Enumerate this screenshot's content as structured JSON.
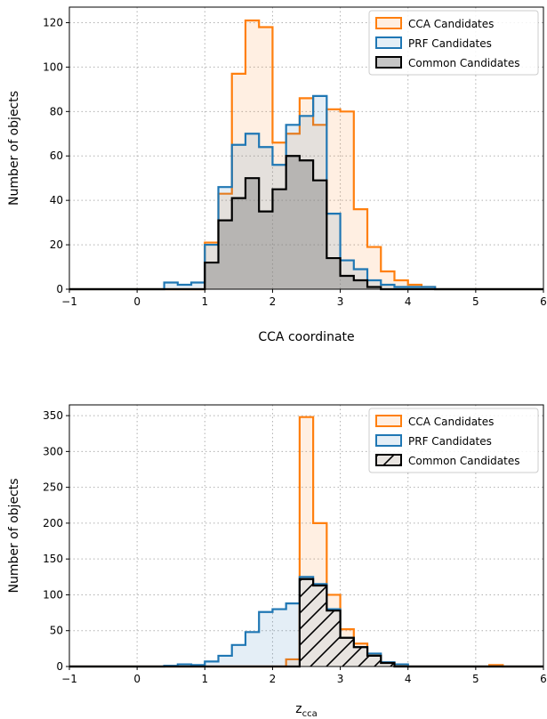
{
  "chart_data": [
    {
      "type": "histogram",
      "xlabel": "CCA coordinate",
      "ylabel": "Number of objects",
      "xlim": [
        -1,
        6
      ],
      "ylim": [
        0,
        127
      ],
      "xticks": [
        -1,
        0,
        1,
        2,
        3,
        4,
        5,
        6
      ],
      "yticks": [
        0,
        20,
        40,
        60,
        80,
        100,
        120
      ],
      "grid": true,
      "legend_position": "top-right",
      "bin_edges": [
        -1.0,
        -0.8,
        -0.6,
        -0.4,
        -0.2,
        0.0,
        0.2,
        0.4,
        0.6,
        0.8,
        1.0,
        1.2,
        1.4,
        1.6,
        1.8,
        2.0,
        2.2,
        2.4,
        2.6,
        2.8,
        3.0,
        3.2,
        3.4,
        3.6,
        3.8,
        4.0,
        4.2,
        4.4,
        4.6,
        4.8,
        5.0,
        5.2,
        5.4,
        5.6,
        5.8,
        6.0
      ],
      "series": [
        {
          "name": "CCA Candidates",
          "color": "#ff7f0e",
          "fill": "#ff7f0e",
          "fill_opacity": 0.12,
          "hatch": false,
          "values": [
            0,
            0,
            0,
            0,
            0,
            0,
            0,
            0,
            0,
            0,
            21,
            43,
            97,
            121,
            118,
            66,
            70,
            86,
            74,
            81,
            80,
            36,
            19,
            8,
            4,
            2,
            1,
            0,
            0,
            0,
            0,
            0,
            0,
            0,
            0
          ]
        },
        {
          "name": "PRF Candidates",
          "color": "#1f77b4",
          "fill": "#1f77b4",
          "fill_opacity": 0.12,
          "hatch": false,
          "values": [
            0,
            0,
            0,
            0,
            0,
            0,
            0,
            3,
            2,
            3,
            20,
            46,
            65,
            70,
            64,
            56,
            74,
            78,
            87,
            34,
            13,
            9,
            4,
            2,
            1,
            1,
            1,
            0,
            0,
            0,
            0,
            0,
            0,
            0,
            0
          ]
        },
        {
          "name": "Common Candidates",
          "color": "#000000",
          "fill": "#808080",
          "fill_opacity": 0.45,
          "hatch": false,
          "values": [
            0,
            0,
            0,
            0,
            0,
            0,
            0,
            0,
            0,
            0,
            12,
            31,
            41,
            50,
            35,
            45,
            60,
            58,
            49,
            14,
            6,
            4,
            1,
            0,
            0,
            0,
            0,
            0,
            0,
            0,
            0,
            0,
            0,
            0,
            0
          ]
        }
      ]
    },
    {
      "type": "histogram",
      "xlabel": "z",
      "xlabel_sub": "cca",
      "ylabel": "Number of objects",
      "xlim": [
        -1,
        6
      ],
      "ylim": [
        0,
        365
      ],
      "xticks": [
        -1,
        0,
        1,
        2,
        3,
        4,
        5,
        6
      ],
      "yticks": [
        0,
        50,
        100,
        150,
        200,
        250,
        300,
        350
      ],
      "grid": true,
      "legend_position": "top-right",
      "bin_edges": [
        -1.0,
        -0.8,
        -0.6,
        -0.4,
        -0.2,
        0.0,
        0.2,
        0.4,
        0.6,
        0.8,
        1.0,
        1.2,
        1.4,
        1.6,
        1.8,
        2.0,
        2.2,
        2.4,
        2.6,
        2.8,
        3.0,
        3.2,
        3.4,
        3.6,
        3.8,
        4.0,
        4.2,
        4.4,
        4.6,
        4.8,
        5.0,
        5.2,
        5.4,
        5.6,
        5.8,
        6.0
      ],
      "series": [
        {
          "name": "CCA Candidates",
          "color": "#ff7f0e",
          "fill": "#ff7f0e",
          "fill_opacity": 0.12,
          "hatch": false,
          "values": [
            0,
            0,
            0,
            0,
            0,
            0,
            0,
            0,
            0,
            0,
            0,
            0,
            0,
            0,
            0,
            0,
            10,
            348,
            200,
            100,
            52,
            32,
            16,
            5,
            2,
            0,
            0,
            0,
            0,
            0,
            0,
            2,
            0,
            0,
            0
          ]
        },
        {
          "name": "PRF Candidates",
          "color": "#1f77b4",
          "fill": "#1f77b4",
          "fill_opacity": 0.12,
          "hatch": false,
          "values": [
            0,
            0,
            0,
            0,
            0,
            0,
            0,
            1,
            3,
            2,
            7,
            15,
            30,
            48,
            76,
            80,
            88,
            125,
            115,
            80,
            40,
            27,
            18,
            6,
            3,
            0,
            0,
            0,
            0,
            0,
            0,
            0,
            0,
            0,
            0
          ]
        },
        {
          "name": "Common Candidates",
          "color": "#000000",
          "fill": "#e8e4e0",
          "fill_opacity": 1,
          "hatch": true,
          "values": [
            0,
            0,
            0,
            0,
            0,
            0,
            0,
            0,
            0,
            0,
            0,
            0,
            0,
            0,
            0,
            0,
            0,
            122,
            113,
            78,
            40,
            27,
            15,
            5,
            0,
            0,
            0,
            0,
            0,
            0,
            0,
            0,
            0,
            0,
            0
          ]
        }
      ]
    }
  ]
}
